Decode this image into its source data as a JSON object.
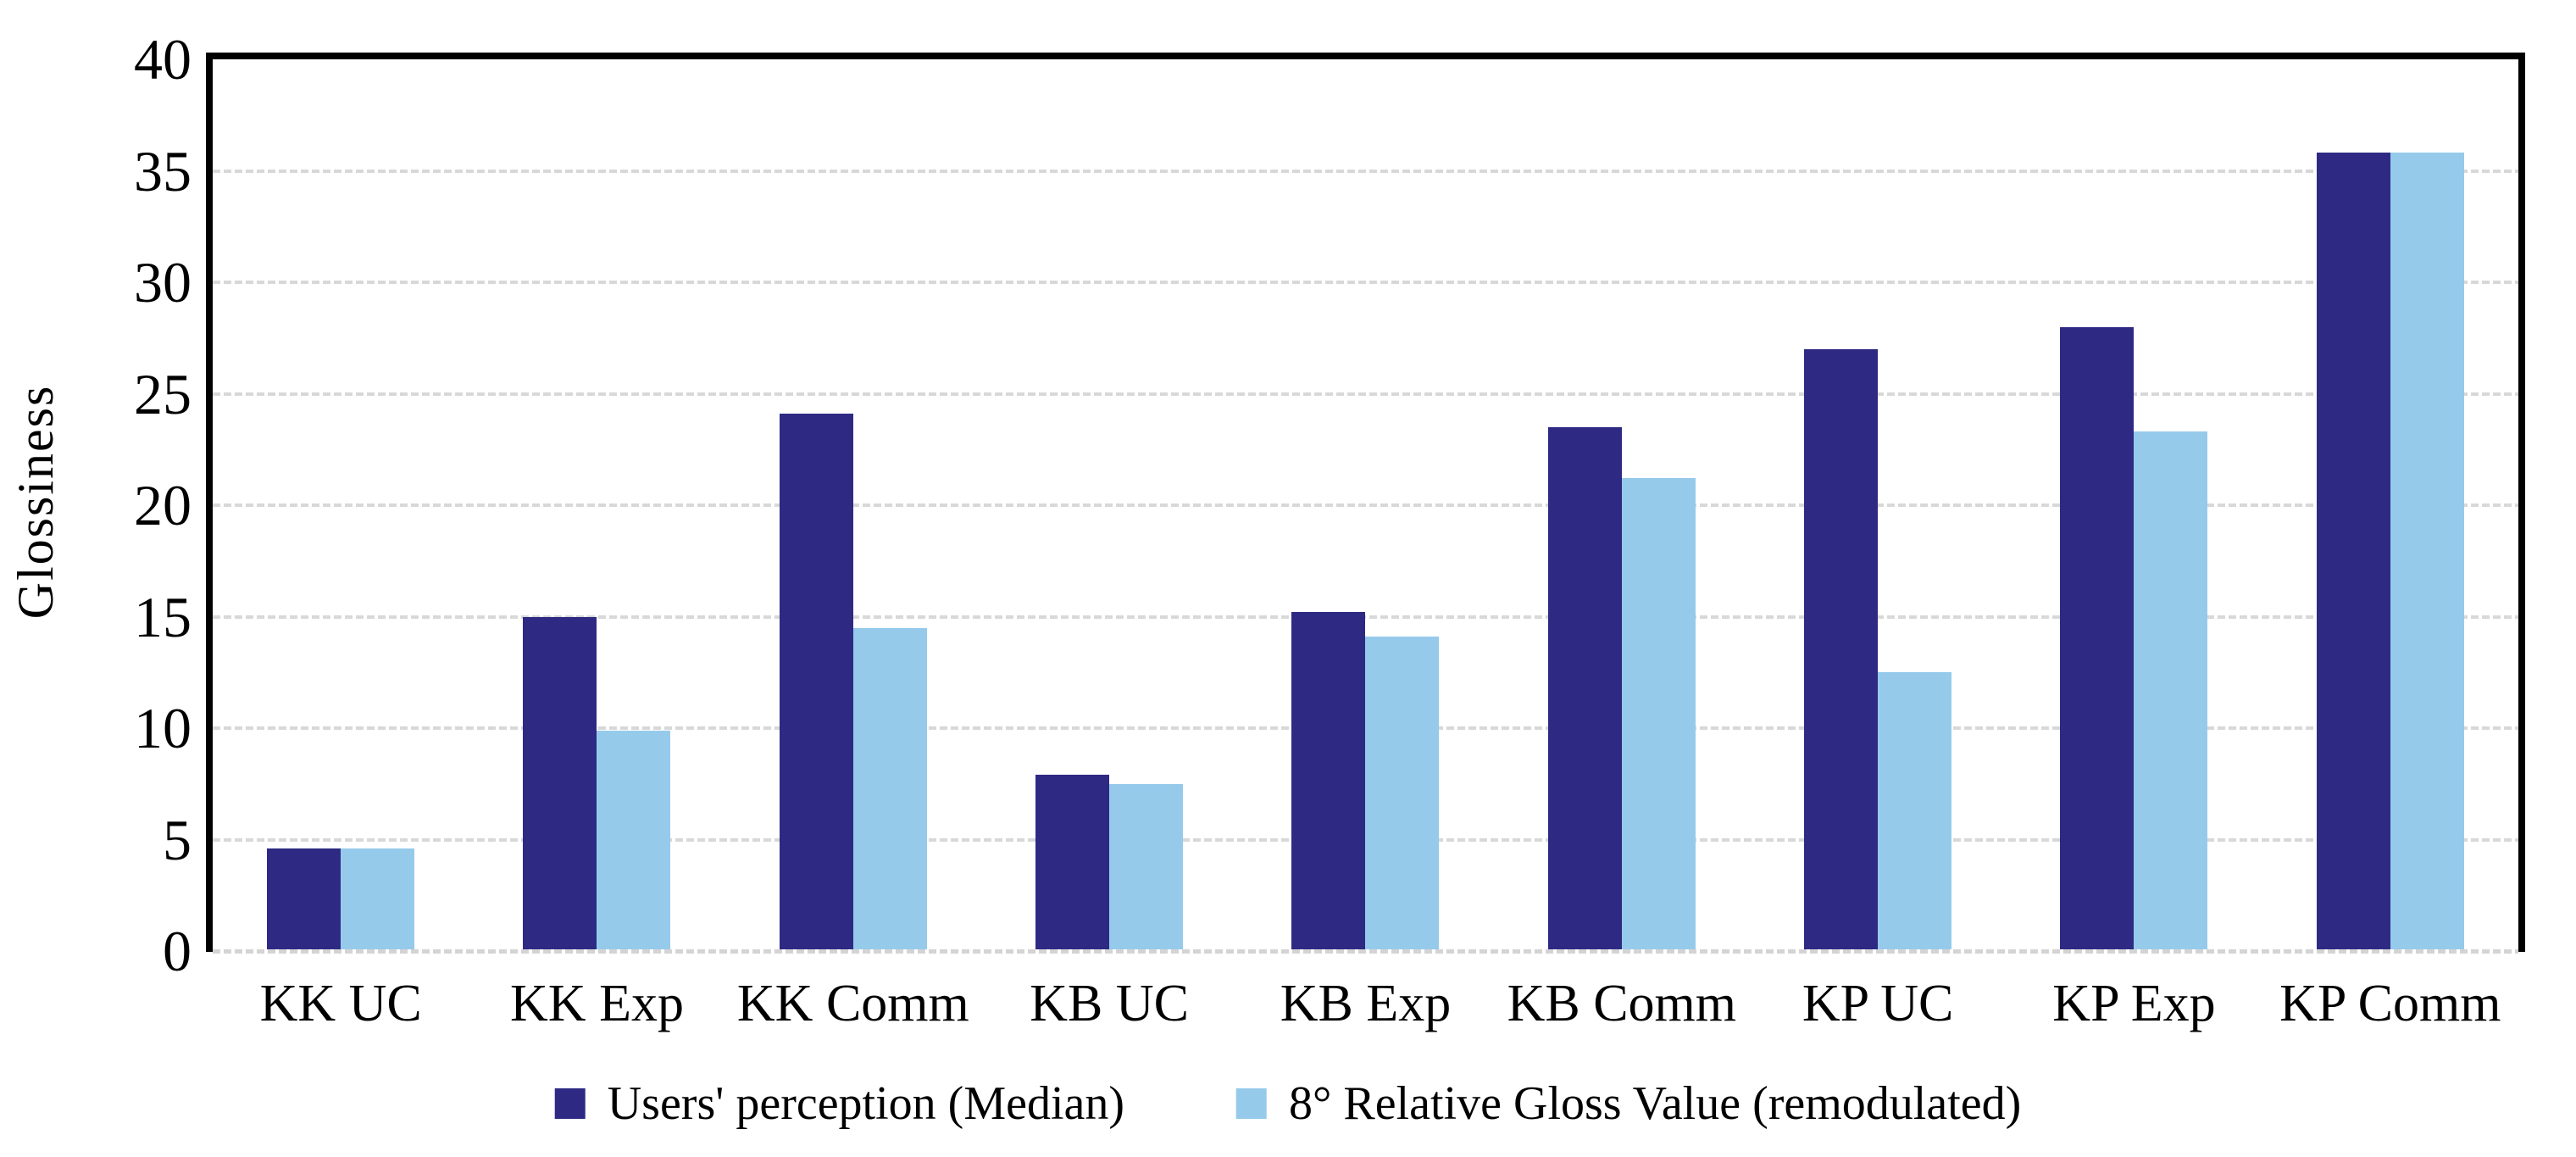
{
  "chart_data": {
    "type": "bar",
    "title": "",
    "ylabel": "Glossiness",
    "xlabel": "",
    "ylim": [
      0,
      40
    ],
    "ytick_step": 5,
    "yticks": [
      0,
      5,
      10,
      15,
      20,
      25,
      30,
      35,
      40
    ],
    "grid": "horizontal-dashed-light-gray",
    "legend_position": "bottom",
    "categories": [
      "KK UC",
      "KK Exp",
      "KK Comm",
      "KB UC",
      "KB Exp",
      "KB Comm",
      "KP UC",
      "KP Exp",
      "KP Comm"
    ],
    "series": [
      {
        "name": "Users' perception (Median)",
        "color": "#2e2a84",
        "values": [
          4.6,
          15.0,
          24.1,
          7.9,
          15.2,
          23.5,
          27.0,
          28.0,
          35.8
        ]
      },
      {
        "name": "8° Relative Gloss Value (remodulated)",
        "color": "#96caeb",
        "values": [
          4.6,
          9.9,
          14.5,
          7.5,
          14.1,
          21.2,
          12.5,
          23.3,
          35.8
        ]
      }
    ]
  }
}
